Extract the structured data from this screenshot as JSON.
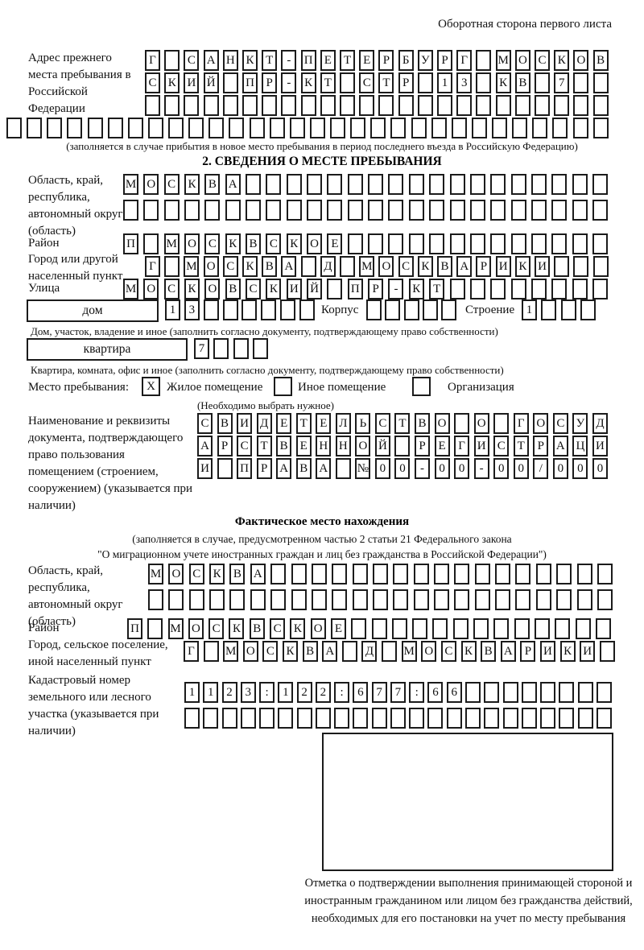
{
  "header": {
    "note": "Оборотная сторона первого листа"
  },
  "prev_address": {
    "label": "Адрес прежнего места пребывания в Российской Федерации",
    "row1": {
      "n": 24,
      "t": "Г САНКТ-ПЕТЕРБУРГ МОСКОВ"
    },
    "row2": {
      "n": 24,
      "t": "СКИЙ ПР-КТ СТР 13 КВ 7"
    },
    "row3": {
      "n": 24,
      "t": ""
    },
    "row4": {
      "n": 30,
      "t": ""
    },
    "caption": "(заполняется в случае прибытия в новое место пребывания в период последнего въезда в Российскую Федерацию)"
  },
  "section2": {
    "title": "2. СВЕДЕНИЯ О МЕСТЕ ПРЕБЫВАНИЯ",
    "region": {
      "label": "Область, край, республика, автономный округ (область)",
      "row1": {
        "n": 24,
        "t": "МОСКВА"
      },
      "row2": {
        "n": 24,
        "t": ""
      }
    },
    "district": {
      "label": "Район",
      "row": {
        "n": 24,
        "t": "П МОСКВСКОЕ"
      }
    },
    "city": {
      "label": "Город или другой населенный пункт",
      "row": {
        "n": 24,
        "t": "Г МОСКВА Д МОСКВАРИКИ"
      }
    },
    "street": {
      "label": "Улица",
      "row": {
        "n": 24,
        "t": "МОСКОВСКИЙ ПР-КТ"
      }
    },
    "house": {
      "box_text": "дом",
      "cells": {
        "n": 8,
        "t": "13"
      },
      "korpus_label": "Корпус",
      "korpus_cells": {
        "n": 5,
        "t": ""
      },
      "stroenie_label": "Строение",
      "stroenie_cells": {
        "n": 4,
        "t": "1"
      },
      "caption": "Дом, участок, владение и иное (заполнить согласно документу, подтверждающему право собственности)"
    },
    "apartment": {
      "box_text": "квартира",
      "cells": {
        "n": 4,
        "t": "7"
      },
      "caption": "Квартира, комната, офис и иное (заполнить согласно документу, подтверждающему право собственности)"
    },
    "stay": {
      "label": "Место пребывания:",
      "opt1_mark": "X",
      "opt1": "Жилое помещение",
      "opt2_mark": "",
      "opt2": "Иное помещение",
      "opt3_mark": "",
      "opt3": "Организация",
      "note": "(Необходимо выбрать нужное)"
    },
    "doc": {
      "label": "Наименование и реквизиты документа, подтверждающего право пользования помещением (строением, сооружением) (указывается при наличии)",
      "row1": {
        "n": 21,
        "t": "СВИДЕТЕЛЬСТВО О ГОСУД"
      },
      "row2": {
        "n": 21,
        "t": "АРСТВЕННОЙ РЕГИСТРАЦИ"
      },
      "row3": {
        "n": 21,
        "t": "И ПРАВА №00-00-00/000"
      }
    }
  },
  "actual": {
    "title": "Фактическое место нахождения",
    "caption1": "(заполняется в случае, предусмотренном частью 2 статьи 21 Федерального закона",
    "caption2": "\"О миграционном учете иностранных граждан и лиц без гражданства в Российской Федерации\")",
    "region": {
      "label": "Область, край, республика, автономный округ (область)",
      "row1": {
        "n": 23,
        "t": "МОСКВА"
      },
      "row2": {
        "n": 23,
        "t": ""
      }
    },
    "district": {
      "label": "Район",
      "row": {
        "n": 24,
        "t": "П МОСКВСКОЕ"
      }
    },
    "city": {
      "label": "Город, сельское поселение, иной населенный пункт",
      "row": {
        "n": 22,
        "t": "Г МОСКВА Д МОСКВАРИКИ"
      }
    },
    "cadastral": {
      "label": "Кадастровый номер земельного или лесного участка (указывается при наличии)",
      "row1": {
        "n": 23,
        "t": "1123:122:677:66"
      },
      "row2": {
        "n": 23,
        "t": ""
      }
    },
    "stamp_caption": "Отметка о подтверждении выполнения принимающей стороной и иностранным гражданином или лицом без гражданства действий, необходимых для его постановки на учет по месту пребывания"
  }
}
